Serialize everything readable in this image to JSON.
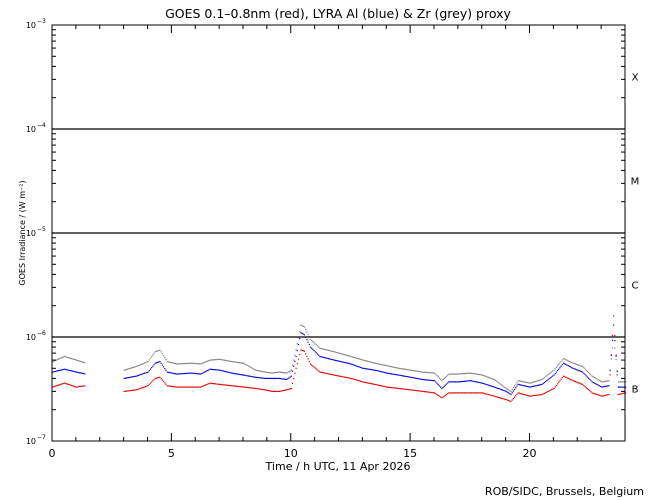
{
  "chart_data": {
    "type": "scatter",
    "title": "GOES 0.1–0.8nm (red), LYRA Al (blue) & Zr (grey) proxy",
    "xlabel": "Time / h UTC, 11 Apr 2026",
    "ylabel": "GOES Irradiance / (W m⁻²)",
    "credit": "ROB/SIDC, Brussels, Belgium",
    "xlim": [
      0,
      24
    ],
    "ylim": [
      1e-07,
      0.001
    ],
    "y_scale": "log",
    "x_ticks": [
      {
        "v": 0,
        "label": "0"
      },
      {
        "v": 5,
        "label": "5"
      },
      {
        "v": 10,
        "label": "10"
      },
      {
        "v": 15,
        "label": "15"
      },
      {
        "v": 20,
        "label": "20"
      }
    ],
    "y_ticks": [
      {
        "v": 1e-07,
        "base": "10",
        "exp": "−7"
      },
      {
        "v": 1e-06,
        "base": "10",
        "exp": "−6"
      },
      {
        "v": 1e-05,
        "base": "10",
        "exp": "−5"
      },
      {
        "v": 0.0001,
        "base": "10",
        "exp": "−4"
      },
      {
        "v": 0.001,
        "base": "10",
        "exp": "−3"
      }
    ],
    "class_lines": [
      1e-06,
      1e-05,
      0.0001
    ],
    "flare_classes": [
      {
        "label": "X",
        "v": 0.00032
      },
      {
        "label": "M",
        "v": 3.2e-05
      },
      {
        "label": "C",
        "v": 3.2e-06
      },
      {
        "label": "B",
        "v": 3.2e-07
      }
    ],
    "colors": {
      "goes": "#e00000",
      "lyra_al": "#0000e0",
      "lyra_zr": "#808080",
      "axes": "#000000"
    },
    "series": [
      {
        "id": "goes",
        "color": "#e00000",
        "gaps": [
          [
            1.45,
            3.0
          ]
        ],
        "points": [
          [
            0,
            3.3e-07
          ],
          [
            0.5,
            3.6e-07
          ],
          [
            1.0,
            3.3e-07
          ],
          [
            1.4,
            3.4e-07
          ],
          [
            3.0,
            3e-07
          ],
          [
            3.5,
            3.1e-07
          ],
          [
            4.0,
            3.4e-07
          ],
          [
            4.3,
            4e-07
          ],
          [
            4.5,
            4.1e-07
          ],
          [
            4.8,
            3.4e-07
          ],
          [
            5.2,
            3.3e-07
          ],
          [
            5.8,
            3.3e-07
          ],
          [
            6.2,
            3.3e-07
          ],
          [
            6.6,
            3.6e-07
          ],
          [
            7.0,
            3.5e-07
          ],
          [
            7.5,
            3.4e-07
          ],
          [
            8.0,
            3.3e-07
          ],
          [
            8.5,
            3.2e-07
          ],
          [
            8.9,
            3.1e-07
          ],
          [
            9.2,
            3e-07
          ],
          [
            9.5,
            3e-07
          ],
          [
            9.8,
            3.1e-07
          ],
          [
            10.0,
            3.2e-07
          ],
          [
            10.2,
            5e-07
          ],
          [
            10.4,
            7.5e-07
          ],
          [
            10.55,
            7.3e-07
          ],
          [
            10.8,
            5.5e-07
          ],
          [
            11.2,
            4.6e-07
          ],
          [
            11.8,
            4.3e-07
          ],
          [
            12.5,
            4e-07
          ],
          [
            13.0,
            3.7e-07
          ],
          [
            13.5,
            3.5e-07
          ],
          [
            14.0,
            3.3e-07
          ],
          [
            14.5,
            3.2e-07
          ],
          [
            15.0,
            3.1e-07
          ],
          [
            15.5,
            3e-07
          ],
          [
            16.0,
            2.9e-07
          ],
          [
            16.3,
            2.6e-07
          ],
          [
            16.6,
            2.9e-07
          ],
          [
            17.0,
            2.9e-07
          ],
          [
            17.5,
            2.9e-07
          ],
          [
            18.0,
            2.9e-07
          ],
          [
            18.5,
            2.7e-07
          ],
          [
            19.0,
            2.5e-07
          ],
          [
            19.2,
            2.4e-07
          ],
          [
            19.5,
            2.9e-07
          ],
          [
            20.0,
            2.7e-07
          ],
          [
            20.5,
            2.8e-07
          ],
          [
            21.0,
            3.2e-07
          ],
          [
            21.4,
            4.2e-07
          ],
          [
            21.8,
            3.8e-07
          ],
          [
            22.2,
            3.5e-07
          ],
          [
            22.6,
            2.9e-07
          ],
          [
            23.0,
            2.7e-07
          ],
          [
            23.3,
            2.8e-07
          ],
          [
            23.5,
            1.6e-06
          ],
          [
            23.7,
            2.8e-07
          ],
          [
            24.0,
            2.9e-07
          ]
        ]
      },
      {
        "id": "lyra_al",
        "color": "#0000e0",
        "gaps": [
          [
            1.45,
            3.0
          ]
        ],
        "points": [
          [
            0,
            4.6e-07
          ],
          [
            0.5,
            4.9e-07
          ],
          [
            1.0,
            4.6e-07
          ],
          [
            1.4,
            4.4e-07
          ],
          [
            3.0,
            4e-07
          ],
          [
            3.5,
            4.2e-07
          ],
          [
            4.0,
            4.6e-07
          ],
          [
            4.3,
            5.6e-07
          ],
          [
            4.5,
            5.8e-07
          ],
          [
            4.8,
            4.6e-07
          ],
          [
            5.2,
            4.4e-07
          ],
          [
            5.8,
            4.5e-07
          ],
          [
            6.2,
            4.4e-07
          ],
          [
            6.6,
            4.9e-07
          ],
          [
            7.0,
            4.8e-07
          ],
          [
            7.5,
            4.5e-07
          ],
          [
            8.0,
            4.3e-07
          ],
          [
            8.5,
            4.1e-07
          ],
          [
            8.9,
            4e-07
          ],
          [
            9.2,
            4e-07
          ],
          [
            9.5,
            4e-07
          ],
          [
            9.8,
            3.9e-07
          ],
          [
            10.0,
            4.2e-07
          ],
          [
            10.2,
            6.5e-07
          ],
          [
            10.4,
            1.1e-06
          ],
          [
            10.55,
            1.05e-06
          ],
          [
            10.8,
            8e-07
          ],
          [
            11.2,
            6.5e-07
          ],
          [
            11.8,
            6e-07
          ],
          [
            12.5,
            5.5e-07
          ],
          [
            13.0,
            5e-07
          ],
          [
            13.5,
            4.8e-07
          ],
          [
            14.0,
            4.5e-07
          ],
          [
            14.5,
            4.3e-07
          ],
          [
            15.0,
            4.1e-07
          ],
          [
            15.5,
            3.9e-07
          ],
          [
            16.0,
            3.8e-07
          ],
          [
            16.3,
            3.2e-07
          ],
          [
            16.6,
            3.7e-07
          ],
          [
            17.0,
            3.7e-07
          ],
          [
            17.5,
            3.8e-07
          ],
          [
            18.0,
            3.6e-07
          ],
          [
            18.5,
            3.3e-07
          ],
          [
            19.0,
            3e-07
          ],
          [
            19.2,
            2.8e-07
          ],
          [
            19.5,
            3.5e-07
          ],
          [
            20.0,
            3.3e-07
          ],
          [
            20.5,
            3.5e-07
          ],
          [
            21.0,
            4.3e-07
          ],
          [
            21.4,
            5.6e-07
          ],
          [
            21.8,
            5e-07
          ],
          [
            22.2,
            4.6e-07
          ],
          [
            22.6,
            3.7e-07
          ],
          [
            23.0,
            3.3e-07
          ],
          [
            23.3,
            3.4e-07
          ],
          [
            23.5,
            1.3e-06
          ],
          [
            23.7,
            3.3e-07
          ],
          [
            24.0,
            3.3e-07
          ]
        ]
      },
      {
        "id": "lyra_zr",
        "color": "#808080",
        "gaps": [
          [
            1.45,
            3.0
          ]
        ],
        "points": [
          [
            0,
            5.8e-07
          ],
          [
            0.5,
            6.5e-07
          ],
          [
            1.0,
            6e-07
          ],
          [
            1.4,
            5.6e-07
          ],
          [
            3.0,
            4.8e-07
          ],
          [
            3.5,
            5.2e-07
          ],
          [
            4.0,
            5.8e-07
          ],
          [
            4.3,
            7.2e-07
          ],
          [
            4.5,
            7.5e-07
          ],
          [
            4.8,
            5.8e-07
          ],
          [
            5.2,
            5.5e-07
          ],
          [
            5.8,
            5.6e-07
          ],
          [
            6.2,
            5.5e-07
          ],
          [
            6.6,
            6e-07
          ],
          [
            7.0,
            6.1e-07
          ],
          [
            7.5,
            5.8e-07
          ],
          [
            8.0,
            5.6e-07
          ],
          [
            8.5,
            4.8e-07
          ],
          [
            8.9,
            4.6e-07
          ],
          [
            9.2,
            4.5e-07
          ],
          [
            9.5,
            4.6e-07
          ],
          [
            9.8,
            4.5e-07
          ],
          [
            10.0,
            4.8e-07
          ],
          [
            10.2,
            7.5e-07
          ],
          [
            10.4,
            1.3e-06
          ],
          [
            10.55,
            1.25e-06
          ],
          [
            10.8,
            9.5e-07
          ],
          [
            11.2,
            7.8e-07
          ],
          [
            11.8,
            7.2e-07
          ],
          [
            12.5,
            6.5e-07
          ],
          [
            13.0,
            6e-07
          ],
          [
            13.5,
            5.6e-07
          ],
          [
            14.0,
            5.3e-07
          ],
          [
            14.5,
            5e-07
          ],
          [
            15.0,
            4.8e-07
          ],
          [
            15.5,
            4.6e-07
          ],
          [
            16.0,
            4.5e-07
          ],
          [
            16.3,
            3.8e-07
          ],
          [
            16.6,
            4.4e-07
          ],
          [
            17.0,
            4.4e-07
          ],
          [
            17.5,
            4.5e-07
          ],
          [
            18.0,
            4.3e-07
          ],
          [
            18.5,
            3.9e-07
          ],
          [
            19.0,
            3.2e-07
          ],
          [
            19.2,
            3e-07
          ],
          [
            19.5,
            3.8e-07
          ],
          [
            20.0,
            3.6e-07
          ],
          [
            20.5,
            3.9e-07
          ],
          [
            21.0,
            4.8e-07
          ],
          [
            21.4,
            6.2e-07
          ],
          [
            21.8,
            5.6e-07
          ],
          [
            22.2,
            5.2e-07
          ],
          [
            22.6,
            4.2e-07
          ],
          [
            23.0,
            3.7e-07
          ],
          [
            23.3,
            3.8e-07
          ],
          [
            23.5,
            1e-06
          ],
          [
            23.7,
            3.7e-07
          ],
          [
            24.0,
            3.7e-07
          ]
        ]
      }
    ]
  }
}
